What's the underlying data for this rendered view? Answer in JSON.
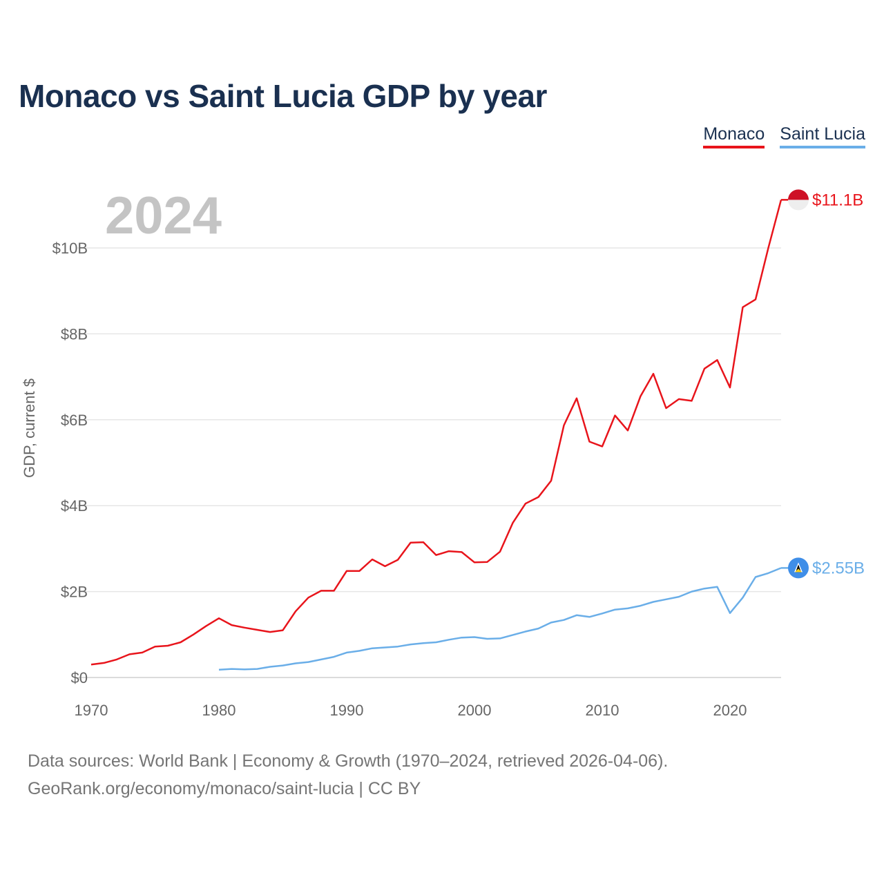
{
  "chart_data": {
    "type": "line",
    "title": "Monaco vs Saint Lucia GDP by year",
    "current_year": "2024",
    "ylabel": "GDP, current $",
    "xlabel": "",
    "xlim": [
      1970,
      2024
    ],
    "ylim": [
      0,
      11
    ],
    "y_unit": "billion US$",
    "x_ticks": [
      1970,
      1980,
      1990,
      2000,
      2010,
      2020
    ],
    "x_tick_labels": [
      "1970",
      "1980",
      "1990",
      "2000",
      "2010",
      "2020"
    ],
    "y_ticks": [
      0,
      2,
      4,
      6,
      8,
      10
    ],
    "y_tick_labels": [
      "$0",
      "$2B",
      "$4B",
      "$6B",
      "$8B",
      "$10B"
    ],
    "grid": true,
    "legend_position": "top-right",
    "series": [
      {
        "name": "Monaco",
        "color": "#e8141b",
        "end_label": "$11.1B",
        "flag_colors": [
          "#ce1126",
          "#eeeeee"
        ],
        "x": [
          1970,
          1971,
          1972,
          1973,
          1974,
          1975,
          1976,
          1977,
          1978,
          1979,
          1980,
          1981,
          1982,
          1983,
          1984,
          1985,
          1986,
          1987,
          1988,
          1989,
          1990,
          1991,
          1992,
          1993,
          1994,
          1995,
          1996,
          1997,
          1998,
          1999,
          2000,
          2001,
          2002,
          2003,
          2004,
          2005,
          2006,
          2007,
          2008,
          2009,
          2010,
          2011,
          2012,
          2013,
          2014,
          2015,
          2016,
          2017,
          2018,
          2019,
          2020,
          2021,
          2022,
          2023,
          2024
        ],
        "values": [
          0.3,
          0.34,
          0.42,
          0.54,
          0.58,
          0.72,
          0.74,
          0.82,
          1.0,
          1.2,
          1.38,
          1.22,
          1.16,
          1.11,
          1.06,
          1.1,
          1.54,
          1.86,
          2.02,
          2.02,
          2.48,
          2.48,
          2.75,
          2.59,
          2.74,
          3.14,
          3.15,
          2.85,
          2.94,
          2.92,
          2.68,
          2.69,
          2.93,
          3.6,
          4.05,
          4.2,
          4.58,
          5.87,
          6.5,
          5.49,
          5.38,
          6.1,
          5.75,
          6.55,
          7.07,
          6.27,
          6.48,
          6.44,
          7.19,
          7.39,
          6.75,
          8.62,
          8.8,
          10.0,
          11.12
        ]
      },
      {
        "name": "Saint Lucia",
        "color": "#6aaee8",
        "end_label": "$2.55B",
        "flag_colors": [
          "#3f8ee8",
          "#fcd116",
          "#000000"
        ],
        "x": [
          1980,
          1981,
          1982,
          1983,
          1984,
          1985,
          1986,
          1987,
          1988,
          1989,
          1990,
          1991,
          1992,
          1993,
          1994,
          1995,
          1996,
          1997,
          1998,
          1999,
          2000,
          2001,
          2002,
          2003,
          2004,
          2005,
          2006,
          2007,
          2008,
          2009,
          2010,
          2011,
          2012,
          2013,
          2014,
          2015,
          2016,
          2017,
          2018,
          2019,
          2020,
          2021,
          2022,
          2023,
          2024
        ],
        "values": [
          0.18,
          0.2,
          0.19,
          0.2,
          0.25,
          0.28,
          0.33,
          0.36,
          0.42,
          0.48,
          0.58,
          0.62,
          0.68,
          0.7,
          0.72,
          0.77,
          0.8,
          0.82,
          0.88,
          0.93,
          0.94,
          0.9,
          0.91,
          0.99,
          1.07,
          1.14,
          1.28,
          1.34,
          1.45,
          1.41,
          1.49,
          1.58,
          1.61,
          1.67,
          1.76,
          1.82,
          1.88,
          2.0,
          2.07,
          2.11,
          1.5,
          1.86,
          2.34,
          2.43,
          2.55
        ]
      }
    ]
  },
  "legend": {
    "items": [
      {
        "label": "Monaco",
        "color": "#e8141b"
      },
      {
        "label": "Saint Lucia",
        "color": "#6aaee8"
      }
    ]
  },
  "footer": {
    "line1": "Data sources: World Bank | Economy & Growth (1970–2024, retrieved 2026-04-06).",
    "line2": "GeoRank.org/economy/monaco/saint-lucia | CC BY"
  }
}
